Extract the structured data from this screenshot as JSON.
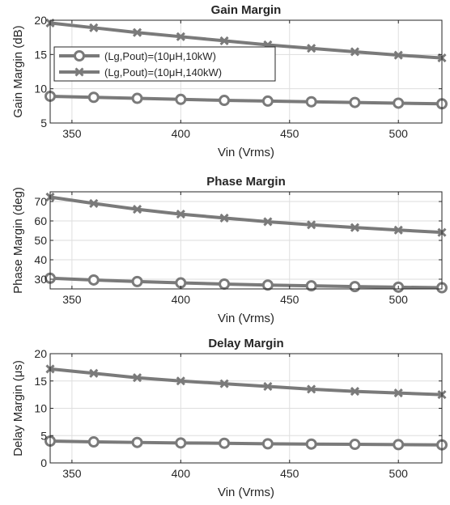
{
  "chart_data": [
    {
      "type": "line",
      "title": "Gain Margin",
      "xlabel": "Vin (Vrms)",
      "ylabel": "Gain Margin (dB)",
      "xlim": [
        340,
        520
      ],
      "ylim": [
        5,
        20
      ],
      "xticks": [
        350,
        400,
        450,
        500
      ],
      "yticks": [
        5,
        10,
        15,
        20
      ],
      "grid": true,
      "legend": {
        "placement": "middle-left",
        "entries": [
          "(Lg,Pout)=(10μH,10kW)",
          "(Lg,Pout)=(10μH,140kW)"
        ]
      },
      "x": [
        340,
        360,
        380,
        400,
        420,
        440,
        460,
        480,
        500,
        520
      ],
      "series": [
        {
          "name": "(Lg,Pout)=(10μH,10kW)",
          "marker": "circle",
          "values": [
            8.9,
            8.75,
            8.6,
            8.45,
            8.3,
            8.2,
            8.1,
            8.0,
            7.9,
            7.8
          ]
        },
        {
          "name": "(Lg,Pout)=(10μH,140kW)",
          "marker": "x",
          "values": [
            19.6,
            18.9,
            18.2,
            17.6,
            17.0,
            16.4,
            15.9,
            15.4,
            14.9,
            14.5
          ]
        }
      ]
    },
    {
      "type": "line",
      "title": "Phase Margin",
      "xlabel": "Vin (Vrms)",
      "ylabel": "Phase Margin (deg)",
      "xlim": [
        340,
        520
      ],
      "ylim": [
        25,
        75
      ],
      "xticks": [
        350,
        400,
        450,
        500
      ],
      "yticks": [
        30,
        40,
        50,
        60,
        70
      ],
      "grid": true,
      "x": [
        340,
        360,
        380,
        400,
        420,
        440,
        460,
        480,
        500,
        520
      ],
      "series": [
        {
          "name": "(Lg,Pout)=(10μH,10kW)",
          "marker": "circle",
          "values": [
            30.5,
            29.6,
            28.8,
            28.1,
            27.5,
            27.0,
            26.6,
            26.2,
            25.9,
            25.6
          ]
        },
        {
          "name": "(Lg,Pout)=(10μH,140kW)",
          "marker": "x",
          "values": [
            72.3,
            69.0,
            66.0,
            63.5,
            61.5,
            59.6,
            58.0,
            56.6,
            55.3,
            54.1
          ]
        }
      ]
    },
    {
      "type": "line",
      "title": "Delay Margin",
      "xlabel": "Vin (Vrms)",
      "ylabel": "Delay Margin (μs)",
      "xlim": [
        340,
        520
      ],
      "ylim": [
        0,
        20
      ],
      "xticks": [
        350,
        400,
        450,
        500
      ],
      "yticks": [
        0,
        5,
        10,
        15,
        20
      ],
      "grid": true,
      "x": [
        340,
        360,
        380,
        400,
        420,
        440,
        460,
        480,
        500,
        520
      ],
      "series": [
        {
          "name": "(Lg,Pout)=(10μH,10kW)",
          "marker": "circle",
          "values": [
            4.0,
            3.85,
            3.75,
            3.65,
            3.6,
            3.5,
            3.45,
            3.4,
            3.35,
            3.3
          ]
        },
        {
          "name": "(Lg,Pout)=(10μH,140kW)",
          "marker": "x",
          "values": [
            17.2,
            16.4,
            15.6,
            15.0,
            14.5,
            14.0,
            13.5,
            13.1,
            12.8,
            12.5
          ]
        }
      ]
    }
  ],
  "colors": {
    "series": "#7a7a7a",
    "grid": "#dedede",
    "axis": "#262626",
    "text": "#262626"
  }
}
